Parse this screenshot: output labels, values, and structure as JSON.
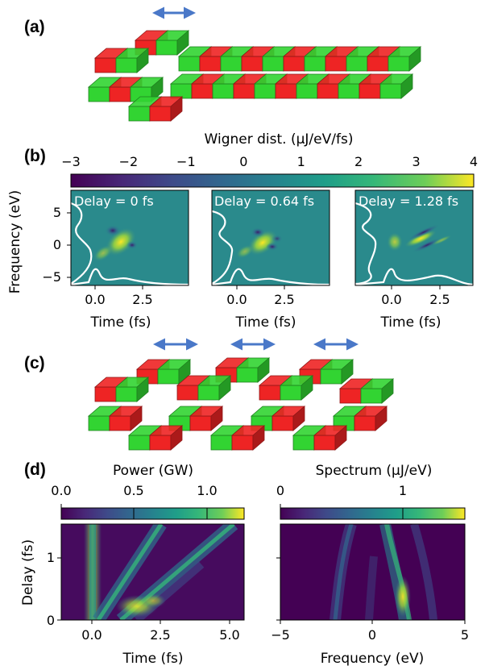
{
  "panel_labels": {
    "a": "(a)",
    "b": "(b)",
    "c": "(c)",
    "d": "(d)"
  },
  "colors": {
    "magnet_red": "#ee2424",
    "magnet_green": "#32d432",
    "arrow_blue": "#4a78c8",
    "background_field": "#2a8a8c"
  },
  "panel_b": {
    "colorbar": {
      "label": "Wigner dist. (μJ/eV/fs)",
      "ticks": [
        "−3",
        "−2",
        "−1",
        "0",
        "1",
        "2",
        "3",
        "4"
      ],
      "range": [
        -3,
        4
      ],
      "colormap": "viridis"
    },
    "subplots": [
      {
        "annotation": "Delay = 0 fs",
        "xlabel": "Time (fs)",
        "xticks": [
          "0.0",
          "2.5"
        ]
      },
      {
        "annotation": "Delay = 0.64 fs",
        "xlabel": "Time (fs)",
        "xticks": [
          "0.0",
          "2.5"
        ]
      },
      {
        "annotation": "Delay = 1.28 fs",
        "xlabel": "Time (fs)",
        "xticks": [
          "0.0",
          "2.5"
        ]
      }
    ],
    "ylabel": "Frequency (eV)",
    "yticks": [
      "5",
      "0",
      "−5"
    ]
  },
  "panel_d": {
    "left": {
      "colorbar_label": "Power (GW)",
      "colorbar_ticks": [
        "0.0",
        "0.5",
        "1.0"
      ],
      "xlabel": "Time (fs)",
      "xticks": [
        "0.0",
        "2.5",
        "5.0"
      ],
      "ylabel": "Delay (fs)",
      "yticks": [
        "1",
        "0"
      ]
    },
    "right": {
      "colorbar_label": "Spectrum (μJ/eV)",
      "colorbar_ticks": [
        "0",
        "1"
      ],
      "xlabel": "Frequency (eV)",
      "xticks": [
        "−5",
        "0",
        "5"
      ]
    }
  },
  "chart_data": [
    {
      "type": "heatmap",
      "title": "",
      "xlabel": "Time (fs)",
      "ylabel": "Frequency (eV)",
      "annotation": "Delay = 0 fs",
      "xlim": [
        -1.5,
        3.5
      ],
      "ylim": [
        -6,
        8
      ],
      "colorbar_range": [
        -3,
        4
      ]
    },
    {
      "type": "heatmap",
      "title": "",
      "xlabel": "Time (fs)",
      "ylabel": "Frequency (eV)",
      "annotation": "Delay = 0.64 fs",
      "xlim": [
        -1.5,
        3.5
      ],
      "ylim": [
        -6,
        8
      ],
      "colorbar_range": [
        -3,
        4
      ]
    },
    {
      "type": "heatmap",
      "title": "",
      "xlabel": "Time (fs)",
      "ylabel": "Frequency (eV)",
      "annotation": "Delay = 1.28 fs",
      "xlim": [
        -1.5,
        3.5
      ],
      "ylim": [
        -6,
        8
      ],
      "colorbar_range": [
        -3,
        4
      ]
    },
    {
      "type": "heatmap",
      "title": "",
      "xlabel": "Time (fs)",
      "ylabel": "Delay (fs)",
      "xlim": [
        -1,
        5.5
      ],
      "ylim": [
        0,
        1.5
      ],
      "colorbar_label": "Power (GW)",
      "colorbar_range": [
        0,
        1.25
      ]
    },
    {
      "type": "heatmap",
      "title": "",
      "xlabel": "Frequency (eV)",
      "ylabel": "Delay (fs)",
      "xlim": [
        -5,
        5
      ],
      "ylim": [
        0,
        1.5
      ],
      "colorbar_label": "Spectrum (μJ/eV)",
      "colorbar_range": [
        0,
        1.5
      ]
    }
  ]
}
